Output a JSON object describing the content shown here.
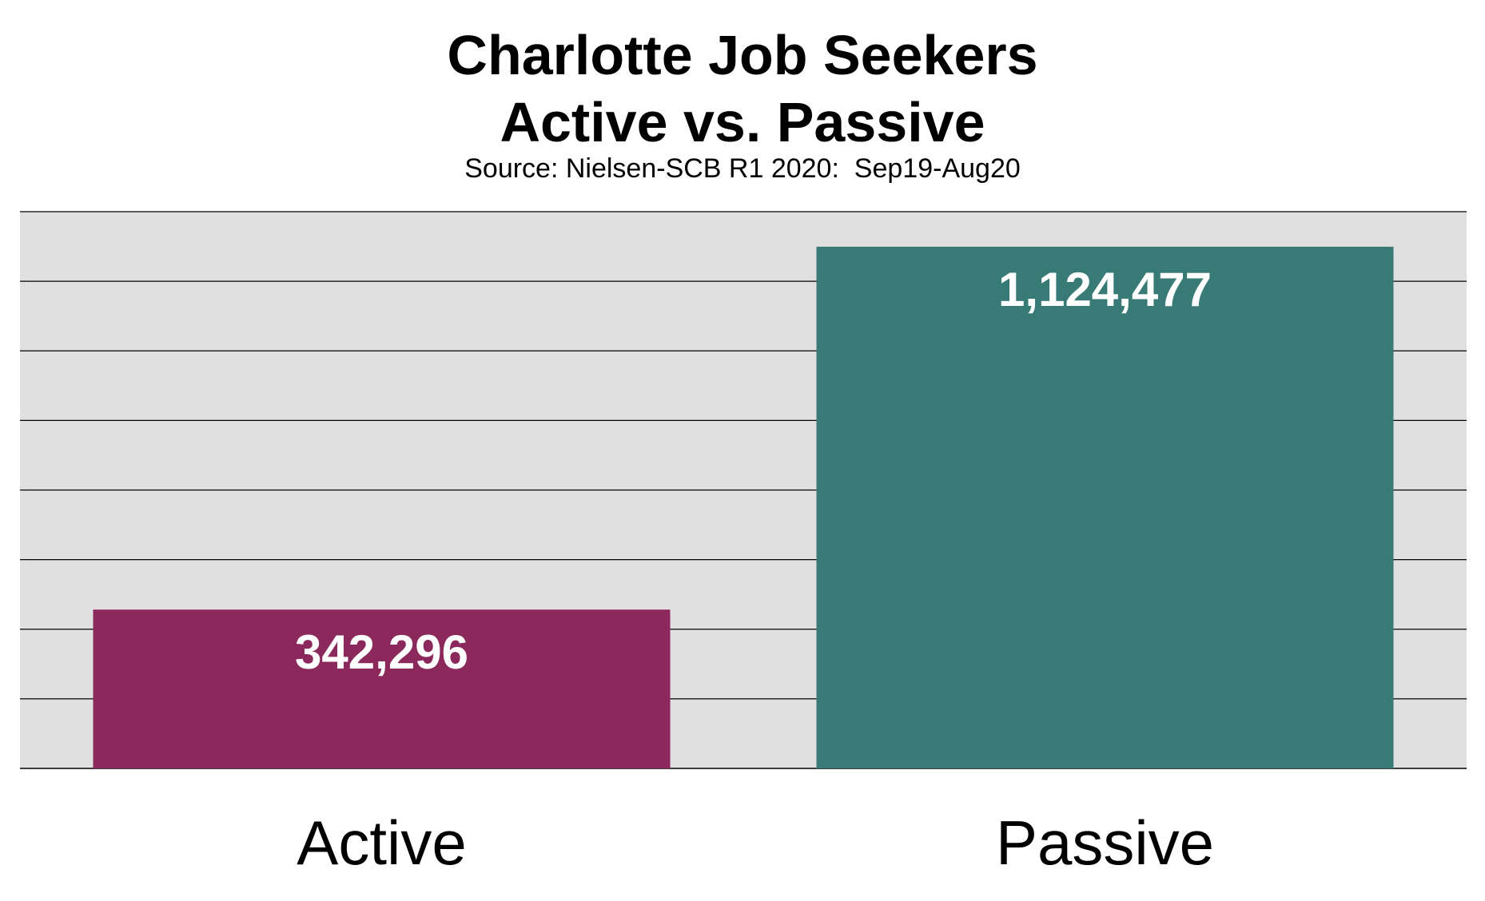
{
  "chart_data": {
    "type": "bar",
    "title_lines": [
      "Charlotte Job Seekers",
      "Active vs. Passive"
    ],
    "subtitle": "Source: Nielsen-SCB R1 2020:  Sep19-Aug20",
    "categories": [
      "Active",
      "Passive"
    ],
    "values": [
      342296,
      1124477
    ],
    "value_labels": [
      "342,296",
      "1,124,477"
    ],
    "colors": [
      "#8B285C",
      "#387A76"
    ],
    "plot_background": "#E0E0E0",
    "gridline_color": "#000000",
    "ylim": [
      0,
      1200000
    ],
    "grid": true,
    "legend": "none"
  }
}
